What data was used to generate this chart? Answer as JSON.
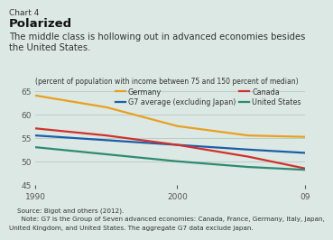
{
  "title_label": "Chart 4",
  "title_bold": "Polarized",
  "subtitle": "The middle class is hollowing out in advanced economies besides\nthe United States.",
  "ylabel": "(percent of population with income between 75 and 150 percent of median)",
  "background_color": "#dce8e3",
  "plot_bg_color": "#dce8e3",
  "ylim": [
    45,
    66
  ],
  "yticks": [
    45,
    50,
    55,
    60,
    65
  ],
  "xlim": [
    1990,
    2009
  ],
  "xticks": [
    1990,
    2000,
    2009
  ],
  "xticklabels": [
    "1990",
    "2000",
    "09"
  ],
  "series": [
    {
      "label": "Germany",
      "color": "#e8a020",
      "x": [
        1990,
        1995,
        2000,
        2005,
        2009
      ],
      "y": [
        64.0,
        61.5,
        57.5,
        55.5,
        55.2
      ]
    },
    {
      "label": "G7 average (excluding Japan)",
      "color": "#1a5fa8",
      "x": [
        1990,
        1995,
        2000,
        2005,
        2009
      ],
      "y": [
        55.5,
        54.5,
        53.5,
        52.5,
        51.8
      ]
    },
    {
      "label": "Canada",
      "color": "#d0312d",
      "x": [
        1990,
        1995,
        2000,
        2005,
        2009
      ],
      "y": [
        57.0,
        55.5,
        53.5,
        51.0,
        48.5
      ]
    },
    {
      "label": "United States",
      "color": "#2e8b70",
      "x": [
        1990,
        1995,
        2000,
        2005,
        2009
      ],
      "y": [
        53.0,
        51.5,
        50.0,
        48.8,
        48.2
      ]
    }
  ],
  "source_line1": "Source: Bigot and others (2012).",
  "source_line2": "  Note: G7 is the Group of Seven advanced economies: Canada, France, Germany, Italy, Japan,",
  "source_line3": "United Kingdom, and United States. The aggregate G7 data exclude Japan.",
  "grid_color": "#b5c9c2",
  "tick_color": "#555555",
  "text_color": "#333333",
  "legend_order": [
    "Germany",
    "G7 average (excluding Japan)",
    "Canada",
    "United States"
  ]
}
